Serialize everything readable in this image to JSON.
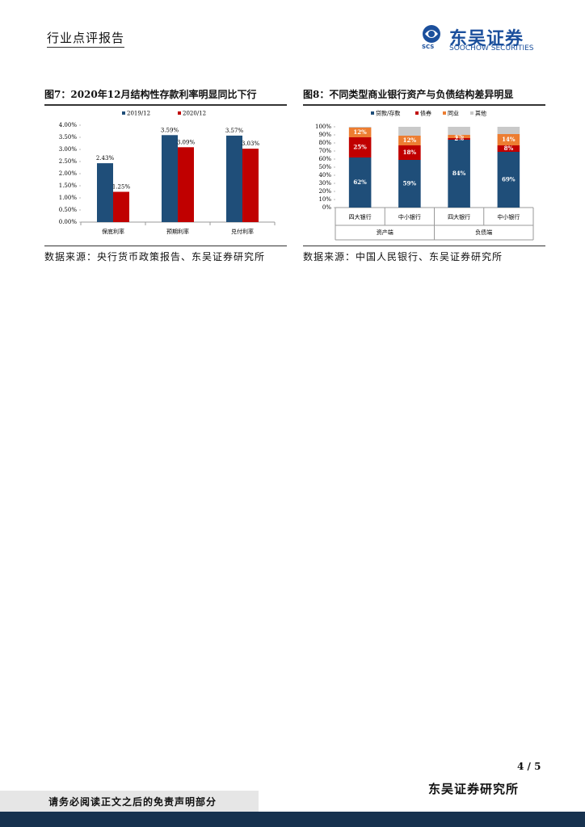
{
  "header": {
    "report_type": "行业点评报告",
    "logo_cn": "东吴证券",
    "logo_en": "SOOCHOW SECURITIES",
    "logo_mark": "SCS"
  },
  "chart_data": [
    {
      "type": "bar",
      "title": "图7：2020年12月结构性存款利率明显同比下行",
      "categories": [
        "保底利率",
        "预期利率",
        "兑付利率"
      ],
      "series": [
        {
          "name": "2019/12",
          "color": "#1f4e79",
          "values": [
            2.43,
            3.59,
            3.57
          ],
          "value_labels": [
            "2.43%",
            "3.59%",
            "3.57%"
          ]
        },
        {
          "name": "2020/12",
          "color": "#c00000",
          "values": [
            1.25,
            3.09,
            3.03
          ],
          "value_labels": [
            "1.25%",
            "3.09%",
            "3.03%"
          ]
        }
      ],
      "ylim": [
        0,
        4
      ],
      "yticks": [
        {
          "value": 0,
          "label": "0.00%"
        },
        {
          "value": 0.5,
          "label": "0.50%"
        },
        {
          "value": 1,
          "label": "1.00%"
        },
        {
          "value": 1.5,
          "label": "1.50%"
        },
        {
          "value": 2,
          "label": "2.00%"
        },
        {
          "value": 2.5,
          "label": "2.50%"
        },
        {
          "value": 3,
          "label": "3.00%"
        },
        {
          "value": 3.5,
          "label": "3.50%"
        },
        {
          "value": 4,
          "label": "4.00%"
        }
      ],
      "legend": "top"
    },
    {
      "type": "stacked_bar",
      "title": "图8：不同类型商业银行资产与负债结构差异明显",
      "categories": [
        "四大银行",
        "中小银行",
        "四大银行",
        "中小银行"
      ],
      "category_groups": [
        "资产端",
        "负债端"
      ],
      "series": [
        {
          "name": "贷款/存款",
          "color": "#1f4e79",
          "values": [
            62,
            59,
            84,
            69
          ],
          "value_labels": [
            "62%",
            "59%",
            "84%",
            "69%"
          ]
        },
        {
          "name": "债券",
          "color": "#c00000",
          "values": [
            25,
            18,
            2,
            8
          ],
          "value_labels": [
            "25%",
            "18%",
            "2%",
            "8%"
          ]
        },
        {
          "name": "同业",
          "color": "#ed7d31",
          "values": [
            12,
            12,
            4,
            14
          ],
          "value_labels": [
            "12%",
            "12%",
            "4%",
            "14%"
          ]
        },
        {
          "name": "其他",
          "color": "#c9c9c9",
          "values": [
            1,
            11,
            10,
            9
          ]
        }
      ],
      "ylim": [
        0,
        100
      ],
      "yticks": [
        {
          "value": 0,
          "label": "0%"
        },
        {
          "value": 10,
          "label": "10%"
        },
        {
          "value": 20,
          "label": "20%"
        },
        {
          "value": 30,
          "label": "30%"
        },
        {
          "value": 40,
          "label": "40%"
        },
        {
          "value": 50,
          "label": "50%"
        },
        {
          "value": 60,
          "label": "60%"
        },
        {
          "value": 70,
          "label": "70%"
        },
        {
          "value": 80,
          "label": "80%"
        },
        {
          "value": 90,
          "label": "90%"
        },
        {
          "value": 100,
          "label": "100%"
        }
      ],
      "legend": "top"
    }
  ],
  "sources": [
    "数据来源：央行货币政策报告、东吴证券研究所",
    "数据来源：中国人民银行、东吴证券研究所"
  ],
  "page_number": "4 / 5",
  "footer": {
    "institute": "东吴证券研究所",
    "disclaimer": "请务必阅读正文之后的免责声明部分"
  }
}
